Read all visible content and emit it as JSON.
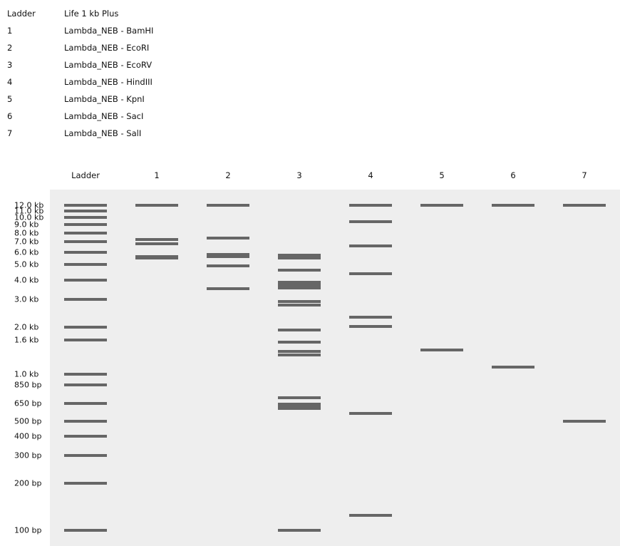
{
  "legend": [
    {
      "lane": "Ladder",
      "description": "Life 1 kb Plus"
    },
    {
      "lane": "1",
      "description": "Lambda_NEB - BamHI"
    },
    {
      "lane": "2",
      "description": "Lambda_NEB - EcoRI"
    },
    {
      "lane": "3",
      "description": "Lambda_NEB - EcoRV"
    },
    {
      "lane": "4",
      "description": "Lambda_NEB - HindIII"
    },
    {
      "lane": "5",
      "description": "Lambda_NEB - KpnI"
    },
    {
      "lane": "6",
      "description": "Lambda_NEB - SacI"
    },
    {
      "lane": "7",
      "description": "Lambda_NEB - SalI"
    }
  ],
  "lanes": [
    "Ladder",
    "1",
    "2",
    "3",
    "4",
    "5",
    "6",
    "7"
  ],
  "ladder": [
    {
      "label": "12.0 kb",
      "bp": 12000
    },
    {
      "label": "11.0 kb",
      "bp": 11000
    },
    {
      "label": "10.0 kb",
      "bp": 10000
    },
    {
      "label": "9.0 kb",
      "bp": 9000
    },
    {
      "label": "8.0 kb",
      "bp": 8000
    },
    {
      "label": "7.0 kb",
      "bp": 7000
    },
    {
      "label": "6.0 kb",
      "bp": 6000
    },
    {
      "label": "5.0 kb",
      "bp": 5000
    },
    {
      "label": "4.0 kb",
      "bp": 4000
    },
    {
      "label": "3.0 kb",
      "bp": 3000
    },
    {
      "label": "2.0 kb",
      "bp": 2000
    },
    {
      "label": "1.6 kb",
      "bp": 1650
    },
    {
      "label": "1.0 kb",
      "bp": 1000
    },
    {
      "label": "850 bp",
      "bp": 850
    },
    {
      "label": "650 bp",
      "bp": 650
    },
    {
      "label": "500 bp",
      "bp": 500
    },
    {
      "label": "400 bp",
      "bp": 400
    },
    {
      "label": "300 bp",
      "bp": 300
    },
    {
      "label": "200 bp",
      "bp": 200
    },
    {
      "label": "100 bp",
      "bp": 100
    }
  ],
  "samples": [
    {
      "lane": "1",
      "bands_bp": [
        12000,
        7233,
        6770,
        5626,
        5505
      ]
    },
    {
      "lane": "2",
      "bands_bp": [
        12000,
        7421,
        5804,
        5643,
        4878,
        3530
      ]
    },
    {
      "lane": "3",
      "bands_bp": [
        5766,
        5485,
        4628,
        3856,
        3722,
        3567,
        2901,
        2756,
        1907,
        1592,
        1390,
        1331,
        707,
        641,
        618,
        601,
        100
      ]
    },
    {
      "lane": "4",
      "bands_bp": [
        12000,
        9416,
        6557,
        4361,
        2322,
        2027,
        564,
        125
      ]
    },
    {
      "lane": "5",
      "bands_bp": [
        12000,
        1430
      ]
    },
    {
      "lane": "6",
      "bands_bp": [
        12000,
        1110
      ]
    },
    {
      "lane": "7",
      "bands_bp": [
        12000,
        499
      ]
    }
  ]
}
